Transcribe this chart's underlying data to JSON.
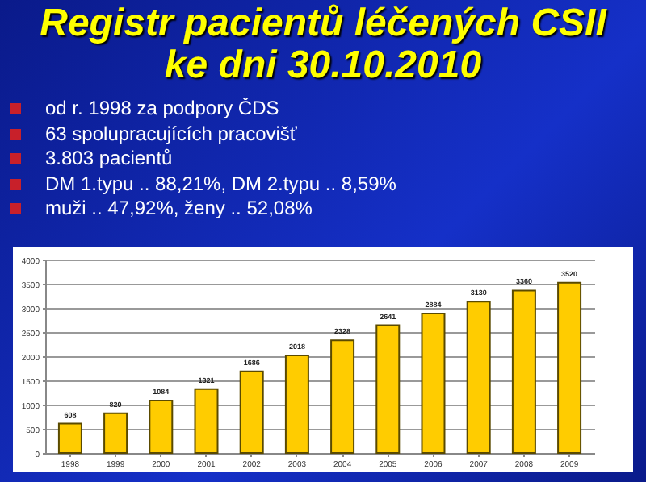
{
  "chart_data": {
    "type": "bar",
    "title": "Registr pacientů léčených CSII\nke dni 30.10.2010",
    "annotations": [
      "od r. 1998 za podpory ČDS",
      "63 spolupracujících pracovišť",
      "3.803 pacientů",
      "DM 1.typu .. 88,21%, DM 2.typu .. 8,59%",
      "muži .. 47,92%,  ženy .. 52,08%"
    ],
    "categories": [
      "1998",
      "1999",
      "2000",
      "2001",
      "2002",
      "2003",
      "2004",
      "2005",
      "2006",
      "2007",
      "2008",
      "2009"
    ],
    "values": [
      608,
      820,
      1084,
      1321,
      1686,
      2018,
      2328,
      2641,
      2884,
      3130,
      3360,
      3520
    ],
    "color": "#ffcc00",
    "data_labels": true,
    "ylim": [
      0,
      4000
    ],
    "yticks": [
      0,
      500,
      1000,
      1500,
      2000,
      2500,
      3000,
      3500,
      4000
    ],
    "grid": "y"
  }
}
